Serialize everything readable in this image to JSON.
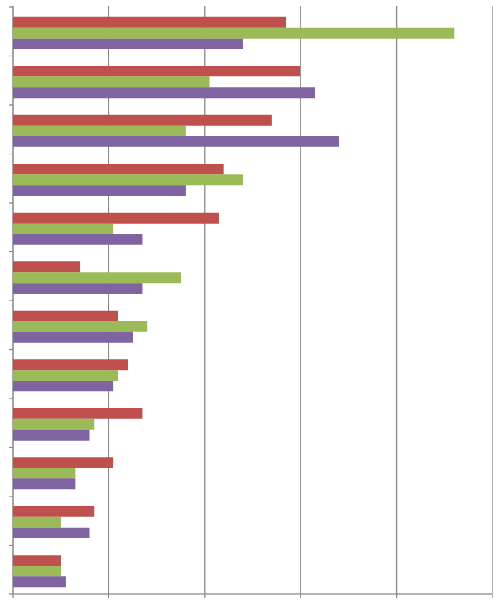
{
  "chart_data": {
    "type": "hbar",
    "categories": [
      null,
      null,
      null,
      null,
      null,
      null,
      null,
      null,
      null,
      null,
      null,
      null
    ],
    "series": [
      {
        "color": "#c0504d",
        "values": [
          2.85,
          3.0,
          2.7,
          2.2,
          2.15,
          0.7,
          1.1,
          1.2,
          1.35,
          1.05,
          0.85,
          0.5
        ]
      },
      {
        "color": "#9bbb59",
        "values": [
          4.6,
          2.05,
          1.8,
          2.4,
          1.05,
          1.75,
          1.4,
          1.1,
          0.85,
          0.65,
          0.5,
          0.5
        ]
      },
      {
        "color": "#8064a2",
        "values": [
          2.4,
          3.15,
          3.4,
          1.8,
          1.35,
          1.35,
          1.25,
          1.05,
          0.8,
          0.65,
          0.8,
          0.55
        ]
      }
    ],
    "xlim": [
      0,
      5
    ],
    "xticks": [
      0,
      1,
      2,
      3,
      4,
      5
    ],
    "grid": true
  }
}
